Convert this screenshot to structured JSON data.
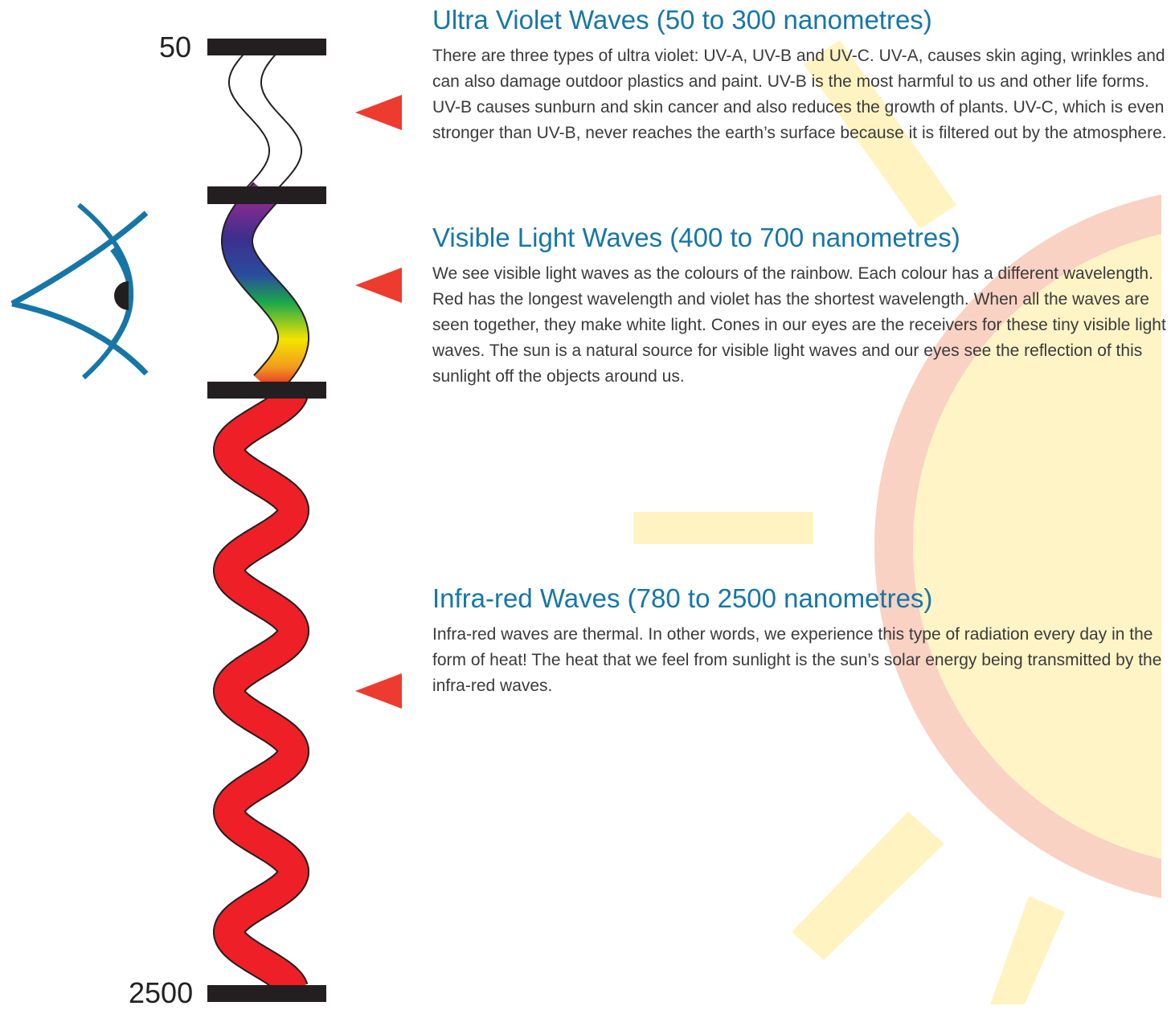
{
  "scale": {
    "top_label": "50",
    "bottom_label": "2500"
  },
  "sections": [
    {
      "title": "Ultra Violet Waves (50 to 300 nanometres)",
      "body": "There are three types of ultra violet: UV-A, UV-B and UV-C. UV-A, causes skin aging, wrinkles and can also damage outdoor plastics and paint. UV-B is the most harmful to us and other life forms. UV-B causes sunburn and skin cancer and also reduces the growth of plants. UV-C, which is even stronger than UV-B, never reaches the earth’s surface because it is filtered out by the atmosphere."
    },
    {
      "title": "Visible Light Waves (400 to 700 nanometres)",
      "body": "We see visible light waves as the colours of the rainbow. Each colour has a different wavelength. Red has the longest wavelength and violet has the shortest wavelength. When all the waves are seen together, they make white light. Cones in our eyes are the receivers for these tiny visible light waves. The sun is a natural source for visible light waves and our eyes see the reflection of this sunlight off the objects around us."
    },
    {
      "title": "Infra-red Waves (780 to 2500 nanometres)",
      "body": "Infra-red waves are thermal. In other words, we experience this type of radiation every day in the form of heat! The heat that we feel from sunlight is the sun’s solar energy being transmitted by the infra-red waves."
    }
  ]
}
